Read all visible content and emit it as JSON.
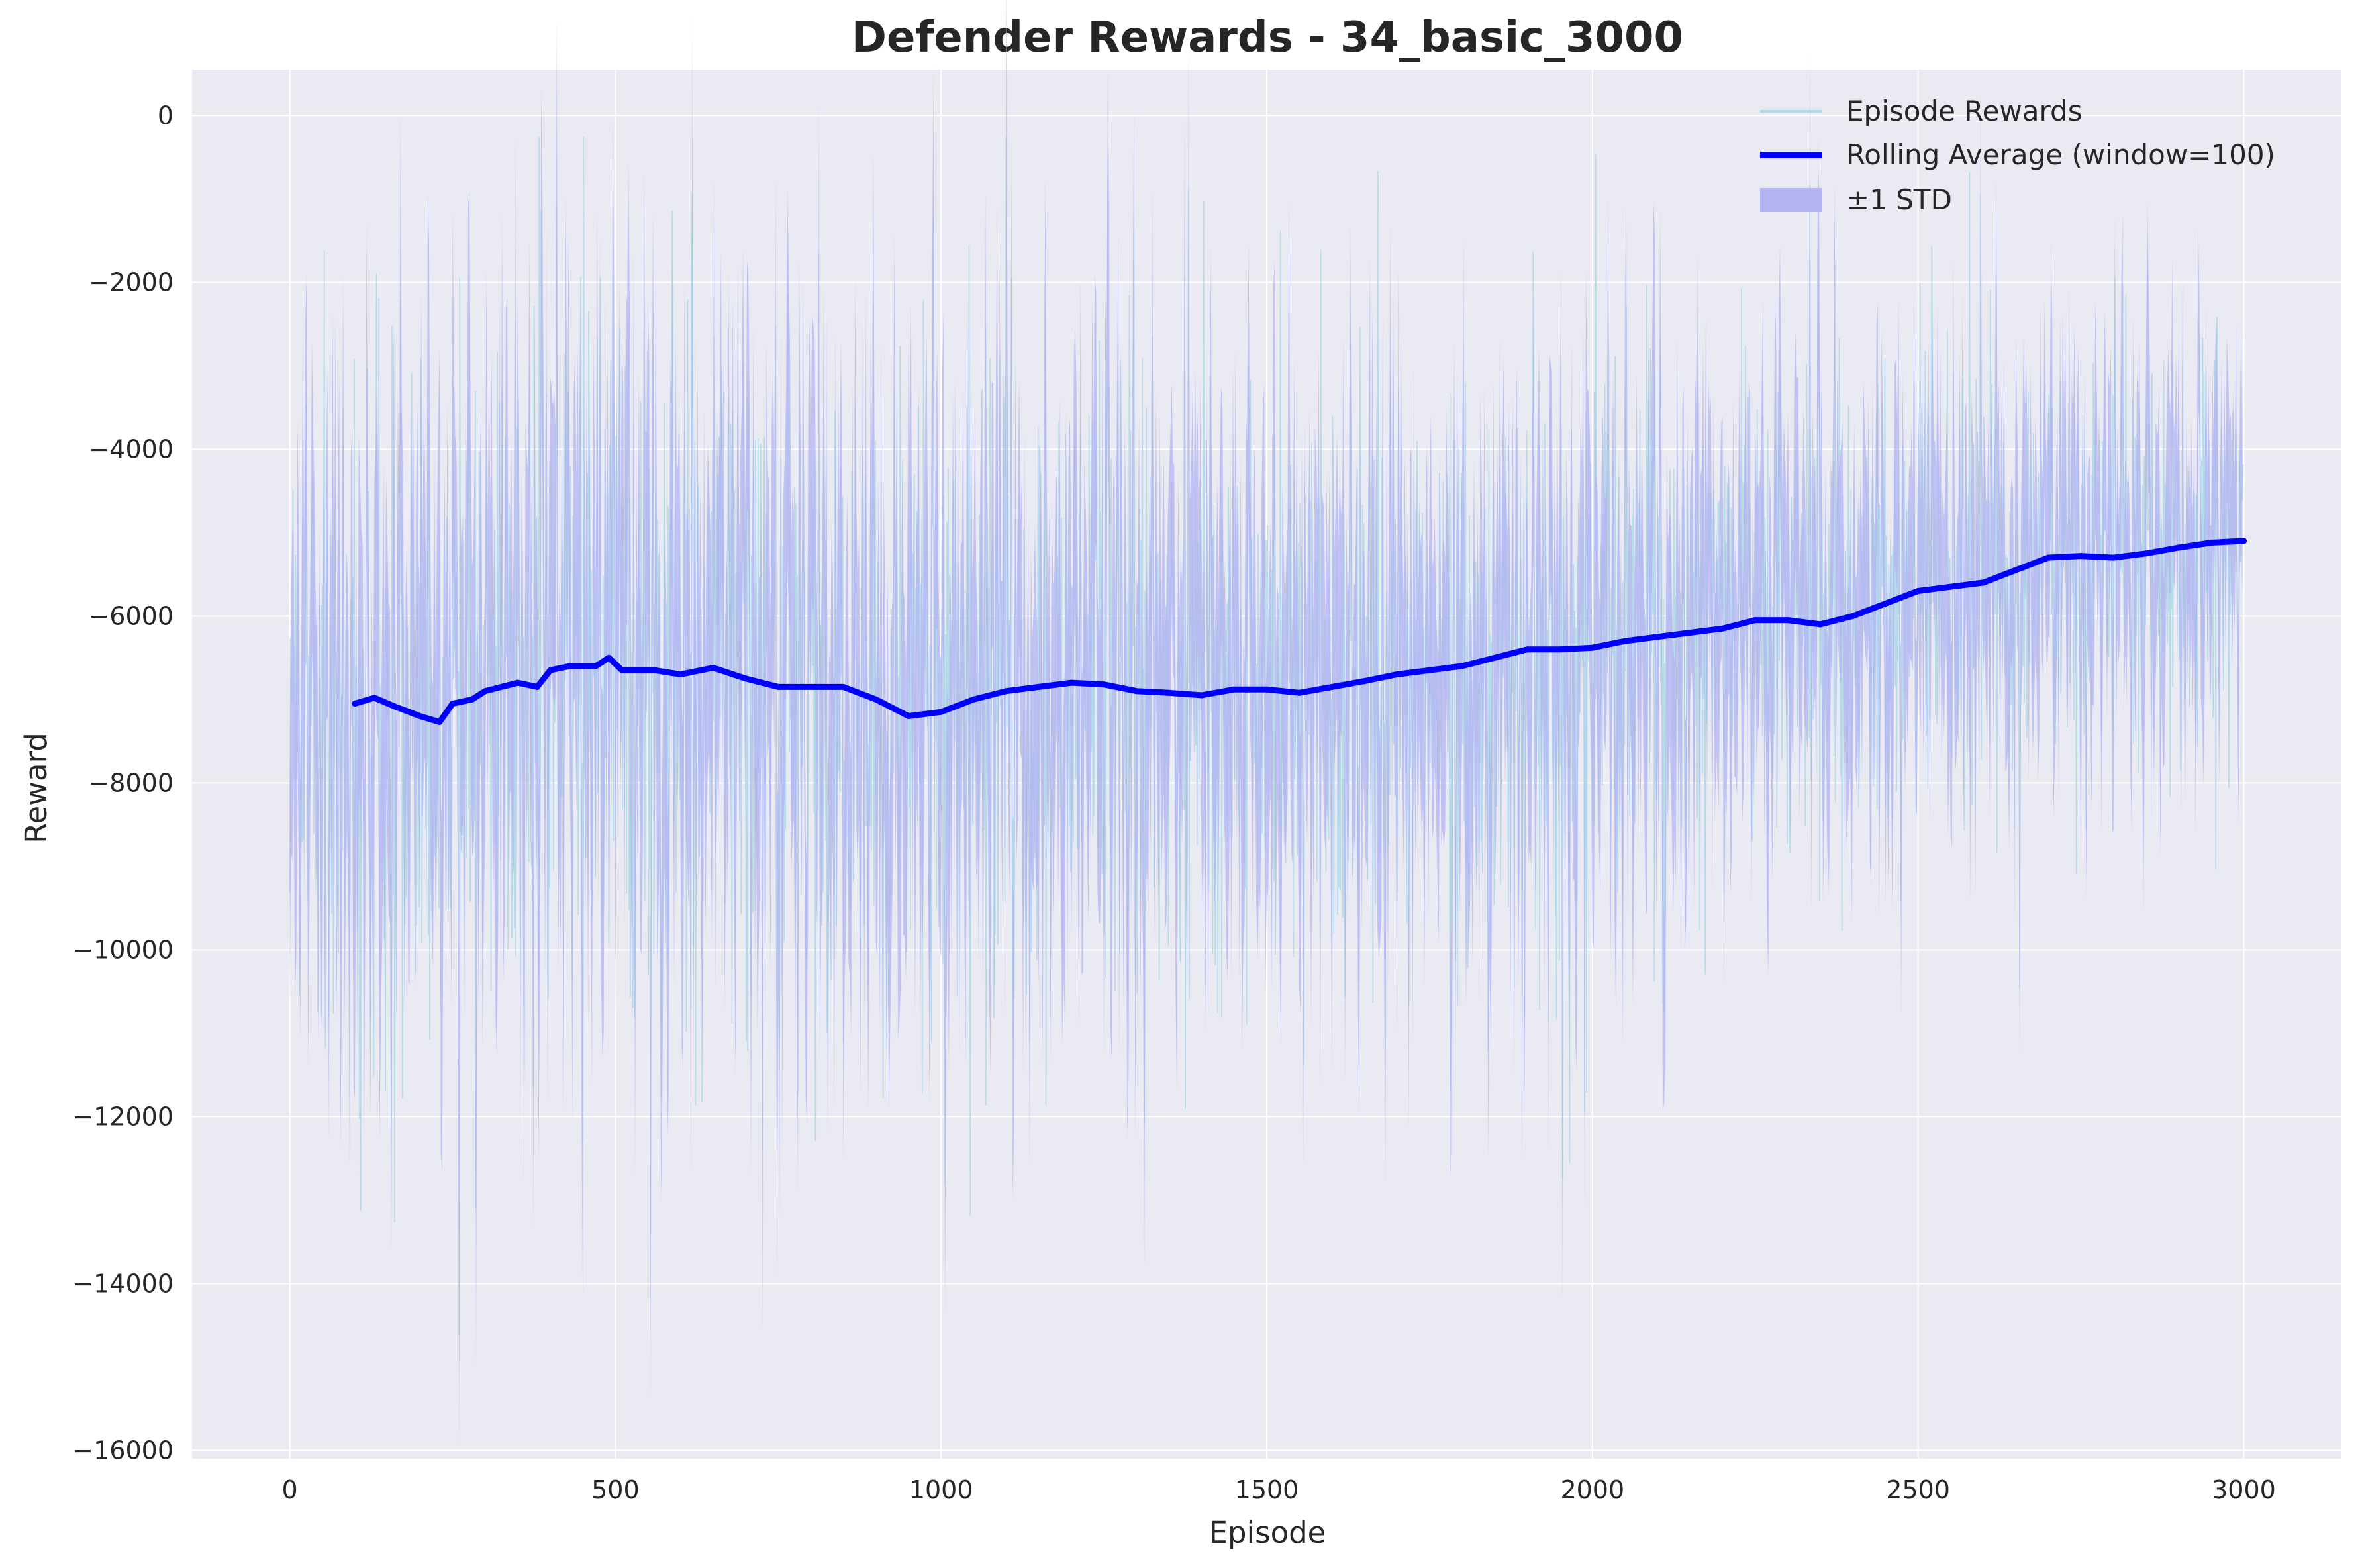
{
  "chart_data": {
    "type": "line",
    "title": "Defender Rewards - 34_basic_3000",
    "xlabel": "Episode",
    "ylabel": "Reward",
    "xlim": [
      -150,
      3150
    ],
    "ylim": [
      -16100,
      550
    ],
    "x_ticks": [
      0,
      500,
      1000,
      1500,
      2000,
      2500,
      3000
    ],
    "y_ticks": [
      0,
      -2000,
      -4000,
      -6000,
      -8000,
      -10000,
      -12000,
      -14000,
      -16000
    ],
    "x_tick_labels": [
      "0",
      "500",
      "1000",
      "1500",
      "2000",
      "2500",
      "3000"
    ],
    "y_tick_labels": [
      "0",
      "−2000",
      "−4000",
      "−6000",
      "−8000",
      "−10000",
      "−12000",
      "−14000",
      "−16000"
    ],
    "grid": true,
    "legend_position": "top-right",
    "colors": {
      "plot_background": "#eaeaf2",
      "grid": "#ffffff",
      "episode": "#add8e6",
      "rolling": "#0000ff",
      "std_band": "#b3b3f2"
    },
    "series": [
      {
        "name": "Episode Rewards",
        "kind": "raw",
        "episodes": 3000,
        "note_range": [
          -15300,
          -250
        ]
      },
      {
        "name": "Rolling Average (window=100)",
        "kind": "rolling",
        "x": [
          100,
          130,
          160,
          200,
          230,
          250,
          280,
          300,
          350,
          380,
          400,
          430,
          470,
          490,
          510,
          560,
          600,
          650,
          700,
          750,
          800,
          850,
          900,
          950,
          1000,
          1050,
          1100,
          1150,
          1200,
          1250,
          1300,
          1350,
          1400,
          1450,
          1500,
          1550,
          1600,
          1650,
          1700,
          1750,
          1800,
          1850,
          1900,
          1950,
          2000,
          2050,
          2100,
          2150,
          2200,
          2250,
          2300,
          2350,
          2400,
          2450,
          2500,
          2550,
          2600,
          2650,
          2700,
          2750,
          2800,
          2850,
          2900,
          2950,
          3000
        ],
        "values": [
          -7050,
          -6980,
          -7080,
          -7200,
          -7270,
          -7050,
          -7000,
          -6900,
          -6800,
          -6850,
          -6650,
          -6600,
          -6600,
          -6500,
          -6650,
          -6650,
          -6700,
          -6620,
          -6750,
          -6850,
          -6850,
          -6850,
          -7000,
          -7200,
          -7150,
          -7000,
          -6900,
          -6850,
          -6800,
          -6820,
          -6900,
          -6920,
          -6950,
          -6880,
          -6880,
          -6920,
          -6850,
          -6780,
          -6700,
          -6650,
          -6600,
          -6500,
          -6400,
          -6400,
          -6380,
          -6300,
          -6250,
          -6200,
          -6150,
          -6050,
          -6050,
          -6100,
          -6000,
          -5850,
          -5700,
          -5650,
          -5600,
          -5450,
          -5300,
          -5280,
          -5300,
          -5250,
          -5180,
          -5120,
          -5100
        ]
      },
      {
        "name": "±1 STD",
        "kind": "band",
        "x": [
          100,
          500,
          1000,
          1500,
          2000,
          2500,
          3000
        ],
        "std": [
          2200,
          2300,
          2150,
          1950,
          1800,
          1550,
          1300
        ]
      }
    ]
  }
}
